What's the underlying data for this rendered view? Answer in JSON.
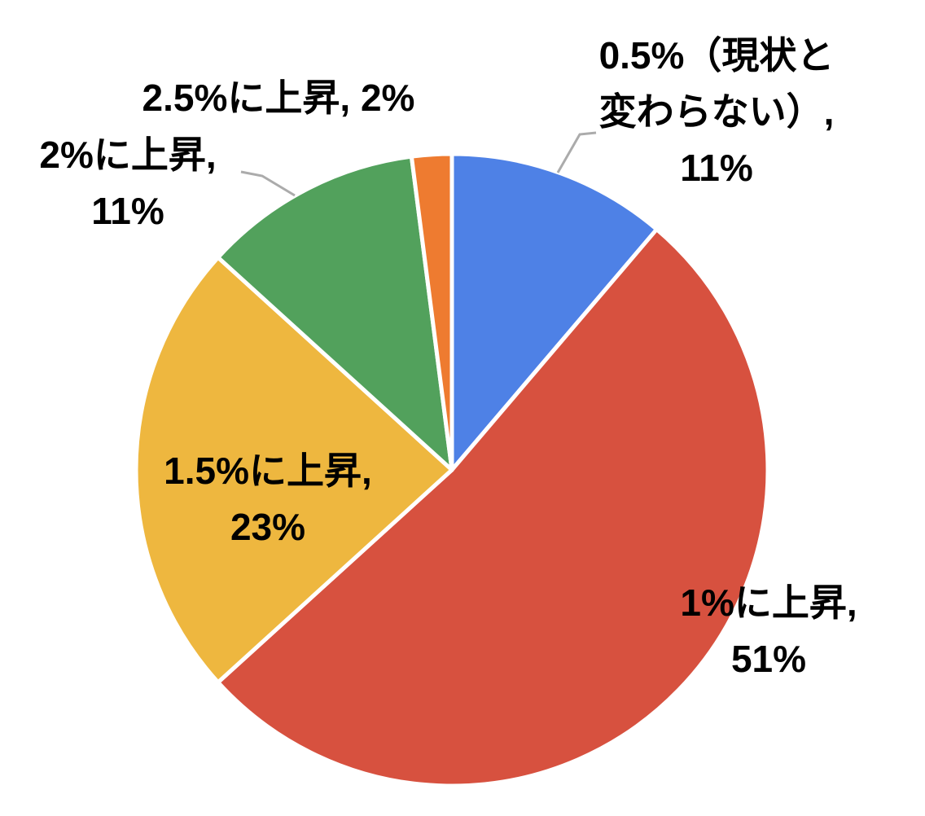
{
  "chart_data": {
    "type": "pie",
    "title": "",
    "unit": "%",
    "start_angle_deg": 0,
    "direction": "clockwise",
    "legend": "none",
    "background_color": "#FFFFFF",
    "text_color": "#000000",
    "separator_color": "#FFFFFF",
    "leader_line_color": "#ABABAB",
    "categories": [
      "0.5%（現状と変わらない）",
      "1%に上昇",
      "1.5%に上昇",
      "2%に上昇",
      "2.5%に上昇"
    ],
    "values": [
      11,
      51,
      23,
      11,
      2
    ],
    "slices": [
      {
        "name": "0.5%（現状と変わらない）",
        "value": 11,
        "color": "#4E81E6",
        "label_lines": [
          "0.5%（現状と",
          "変わらない）,",
          "11%"
        ],
        "label_placement": "outside-top-right",
        "leader_line": true
      },
      {
        "name": "1%に上昇",
        "value": 51,
        "color": "#D7513F",
        "label_lines": [
          "1%に上昇,",
          "51%"
        ],
        "label_placement": "bottom-right",
        "leader_line": false
      },
      {
        "name": "1.5%に上昇",
        "value": 23,
        "color": "#EEB73F",
        "label_lines": [
          "1.5%に上昇,",
          "23%"
        ],
        "label_placement": "inside-left",
        "leader_line": false
      },
      {
        "name": "2%に上昇",
        "value": 11,
        "color": "#52A15C",
        "label_lines": [
          "2%に上昇,",
          "11%"
        ],
        "label_placement": "outside-left",
        "leader_line": true
      },
      {
        "name": "2.5%に上昇",
        "value": 2,
        "color": "#EE7B30",
        "label_lines": [
          "2.5%に上昇, 2%"
        ],
        "label_placement": "outside-top",
        "leader_line": false
      }
    ]
  }
}
